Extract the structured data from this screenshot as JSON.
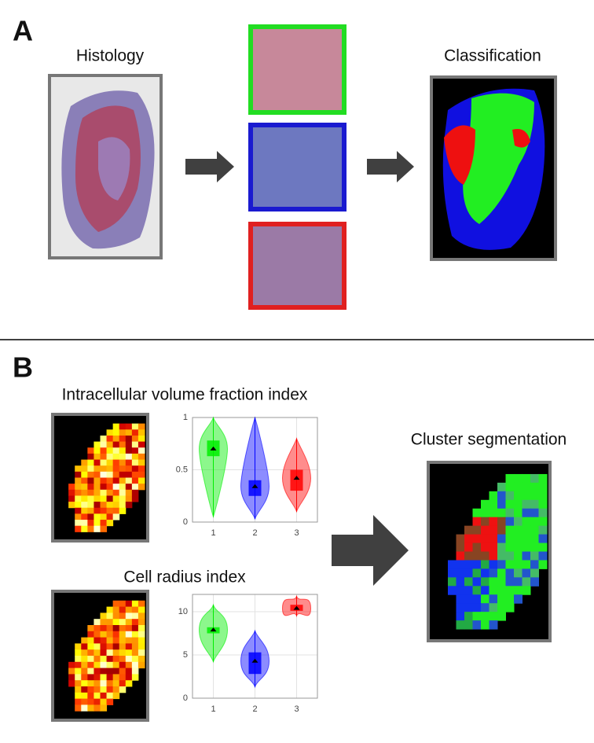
{
  "panel_a": {
    "label": "A",
    "histology_title": "Histology",
    "classification_title": "Classification"
  },
  "panel_b": {
    "label": "B",
    "ivf_title": "Intracellular volume fraction index",
    "radius_title": "Cell radius index",
    "cluster_title": "Cluster segmentation"
  },
  "chart_data": [
    {
      "type": "violin",
      "xlim": [
        0.5,
        3.5
      ],
      "xticks": [
        1,
        2,
        3
      ],
      "ylim": [
        0,
        1
      ],
      "yticks": [
        0,
        0.5,
        1
      ],
      "grid": true,
      "series": [
        {
          "color": "#00ee00",
          "min": 0.05,
          "q1": 0.63,
          "median": 0.7,
          "q3": 0.78,
          "max": 1.0
        },
        {
          "color": "#0000ff",
          "min": 0.03,
          "q1": 0.25,
          "median": 0.34,
          "q3": 0.4,
          "max": 1.0
        },
        {
          "color": "#ff0000",
          "min": 0.1,
          "q1": 0.3,
          "median": 0.42,
          "q3": 0.5,
          "max": 0.8
        }
      ]
    },
    {
      "type": "violin",
      "xlim": [
        0.5,
        3.5
      ],
      "xticks": [
        1,
        2,
        3
      ],
      "ylim": [
        0,
        12
      ],
      "yticks": [
        0,
        5,
        10
      ],
      "grid": true,
      "series": [
        {
          "color": "#00ee00",
          "min": 4.2,
          "q1": 7.5,
          "median": 7.9,
          "q3": 8.2,
          "max": 10.8
        },
        {
          "color": "#0000ff",
          "min": 1.3,
          "q1": 2.8,
          "median": 4.3,
          "q3": 5.3,
          "max": 7.8
        },
        {
          "color": "#ff0000",
          "min": 9.5,
          "q1": 10.1,
          "median": 10.4,
          "q3": 10.8,
          "max": 11.8
        }
      ]
    }
  ]
}
